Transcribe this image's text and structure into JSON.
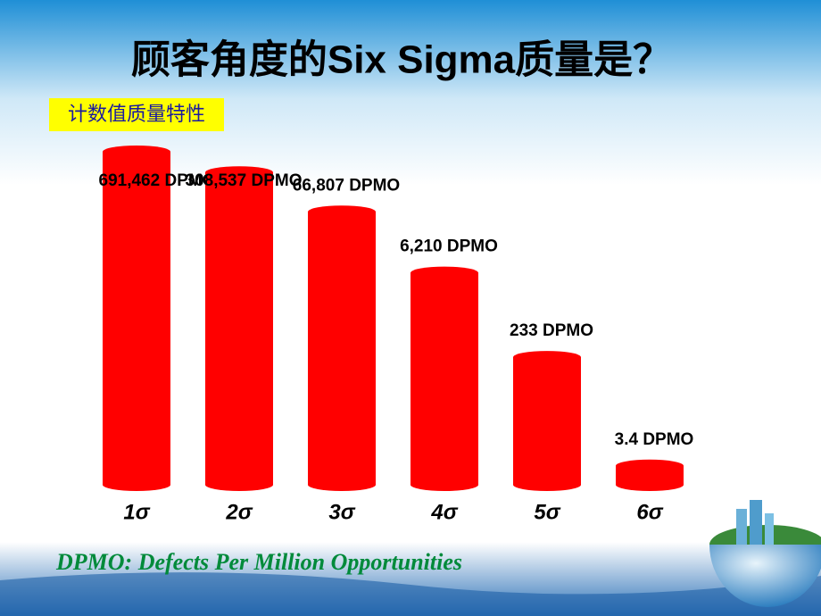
{
  "chart_data": {
    "type": "bar",
    "title": "顾客角度的Six Sigma质量是？",
    "subtitle": "计数值质量特性",
    "categories": [
      "1σ",
      "2σ",
      "3σ",
      "4σ",
      "5σ",
      "6σ"
    ],
    "values": [
      691462,
      308537,
      66807,
      6210,
      233,
      3.4
    ],
    "value_labels": [
      "691,462 DPMO",
      "308,537 DPMO",
      "66,807 DPMO",
      "6,210 DPMO",
      "233 DPMO",
      "3.4 DPMO"
    ],
    "color": "#ff0000",
    "log_scale": true,
    "note": "DPMO: Defects Per Million Opportunities"
  }
}
